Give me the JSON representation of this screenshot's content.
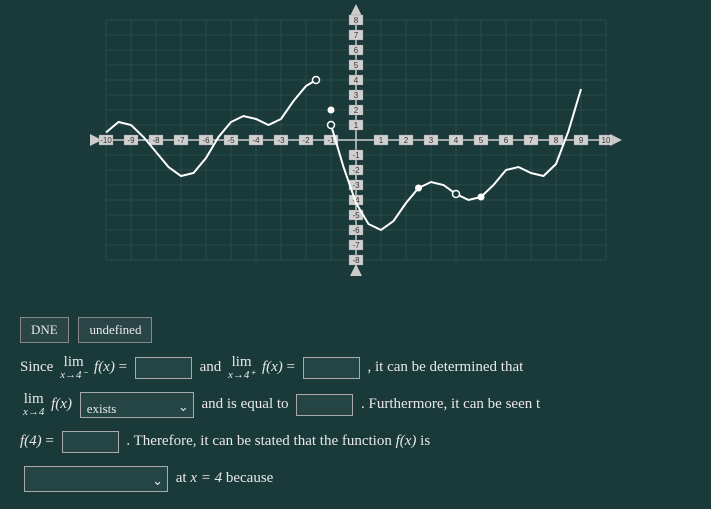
{
  "graph": {
    "type": "line",
    "xlim": [
      -10,
      10
    ],
    "ylim": [
      -8,
      8
    ],
    "xtick_step": 1,
    "ytick_step": 1,
    "background_color": "#1a3a3a",
    "grid_color": "#3a5a5a",
    "axis_color": "#cccccc",
    "curve_color": "#ffffff",
    "curve_width": 2,
    "x_labels": [
      "-10",
      "-9",
      "-8",
      "-7",
      "-6",
      "-5",
      "-4",
      "-3",
      "-2",
      "-1",
      "1",
      "2",
      "3",
      "4",
      "5",
      "6",
      "7",
      "8",
      "9",
      "10"
    ],
    "y_labels_pos": [
      "8",
      "7",
      "6",
      "5",
      "4",
      "3",
      "2",
      "1"
    ],
    "y_labels_neg": [
      "-1",
      "-2",
      "-3",
      "-4",
      "-5",
      "-6",
      "-7",
      "-8"
    ],
    "curve_points": [
      [
        -10,
        0.5
      ],
      [
        -9.5,
        1.2
      ],
      [
        -9,
        1.0
      ],
      [
        -8.5,
        0.2
      ],
      [
        -8,
        -0.8
      ],
      [
        -7.5,
        -1.8
      ],
      [
        -7,
        -2.4
      ],
      [
        -6.5,
        -2.2
      ],
      [
        -6,
        -1.2
      ],
      [
        -5.5,
        0.2
      ],
      [
        -5,
        1.2
      ],
      [
        -4.5,
        1.6
      ],
      [
        -4,
        1.4
      ],
      [
        -3.5,
        1.0
      ],
      [
        -3,
        1.4
      ],
      [
        -2.5,
        2.6
      ],
      [
        -2,
        3.6
      ],
      [
        -1.6,
        4.0
      ]
    ],
    "curve_points_2": [
      [
        -1,
        1.0
      ],
      [
        -0.5,
        -1.8
      ],
      [
        0,
        -4.2
      ],
      [
        0.5,
        -5.6
      ],
      [
        1,
        -6.0
      ],
      [
        1.5,
        -5.4
      ],
      [
        2,
        -4.2
      ],
      [
        2.5,
        -3.2
      ],
      [
        3,
        -2.8
      ],
      [
        3.5,
        -3.0
      ],
      [
        4,
        -3.6
      ],
      [
        4.5,
        -4.0
      ],
      [
        5,
        -3.8
      ],
      [
        5.5,
        -3.0
      ],
      [
        6,
        -2.0
      ],
      [
        6.5,
        -1.8
      ],
      [
        7,
        -2.2
      ],
      [
        7.5,
        -2.4
      ],
      [
        8,
        -1.6
      ],
      [
        8.5,
        0.6
      ],
      [
        9,
        3.4
      ]
    ],
    "open_points": [
      [
        -1.6,
        4.0
      ],
      [
        -1,
        1.0
      ],
      [
        4,
        -3.6
      ]
    ],
    "closed_points": [
      [
        -1,
        2.0
      ],
      [
        2.5,
        -3.2
      ],
      [
        5,
        -3.8
      ]
    ]
  },
  "buttons": {
    "dne": "DNE",
    "undefined": "undefined"
  },
  "text": {
    "since": "Since",
    "lim": "lim",
    "x_to_4_minus": "x→4⁻",
    "x_to_4_plus": "x→4⁺",
    "x_to_4": "x→4",
    "fx": "f(x)",
    "eq": "=",
    "and": "and",
    "determined": ", it can be determined that",
    "exists_opt": "exists",
    "and_equal": "and is equal to",
    "furthermore": ". Furthermore, it can be seen t",
    "f4": "f(4)",
    "therefore": ". Therefore, it can be stated that the function",
    "fx_is": "is",
    "at_x": "at",
    "x_eq_4": "x = 4",
    "because": "because"
  }
}
